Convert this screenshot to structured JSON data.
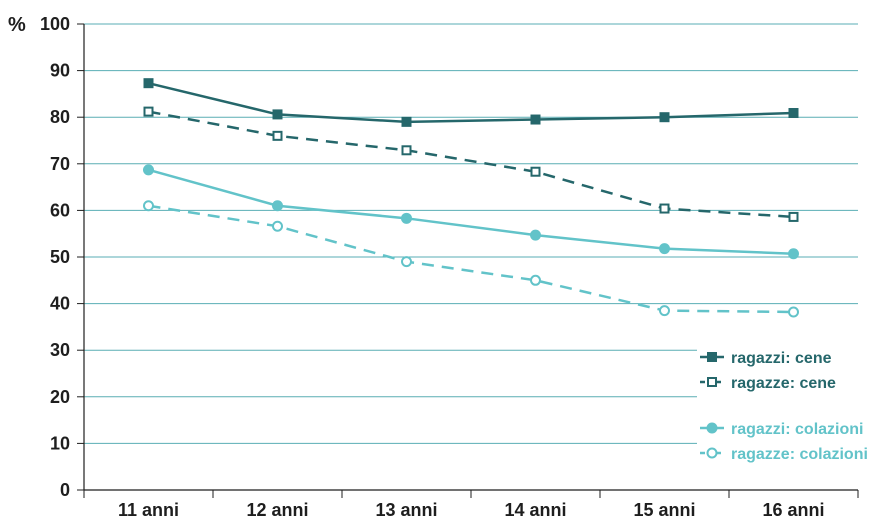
{
  "chart_data": {
    "type": "line",
    "unit_label": "%",
    "categories": [
      "11 anni",
      "12 anni",
      "13 anni",
      "14 anni",
      "15 anni",
      "16 anni"
    ],
    "ylim": [
      0,
      100
    ],
    "yticks": [
      0,
      10,
      20,
      30,
      40,
      50,
      60,
      70,
      80,
      90,
      100
    ],
    "grid": "horizontal",
    "legend_position": "bottom-right",
    "series": [
      {
        "name": "ragazzi: cene",
        "values": [
          87.3,
          80.6,
          79.0,
          79.5,
          80.0,
          80.9
        ],
        "color": "#25676b",
        "dashed": false,
        "marker": "filled-square"
      },
      {
        "name": "ragazze: cene",
        "values": [
          81.2,
          76.0,
          72.9,
          68.3,
          60.4,
          58.6
        ],
        "color": "#25676b",
        "dashed": true,
        "marker": "open-square"
      },
      {
        "name": "ragazzi: colazioni",
        "values": [
          68.7,
          61.0,
          58.3,
          54.7,
          51.8,
          50.7
        ],
        "color": "#62c3c9",
        "dashed": false,
        "marker": "filled-circle"
      },
      {
        "name": "ragazze: colazioni",
        "values": [
          61.0,
          56.6,
          49.0,
          45.0,
          38.5,
          38.2
        ],
        "color": "#62c3c9",
        "dashed": true,
        "marker": "open-circle"
      }
    ]
  }
}
